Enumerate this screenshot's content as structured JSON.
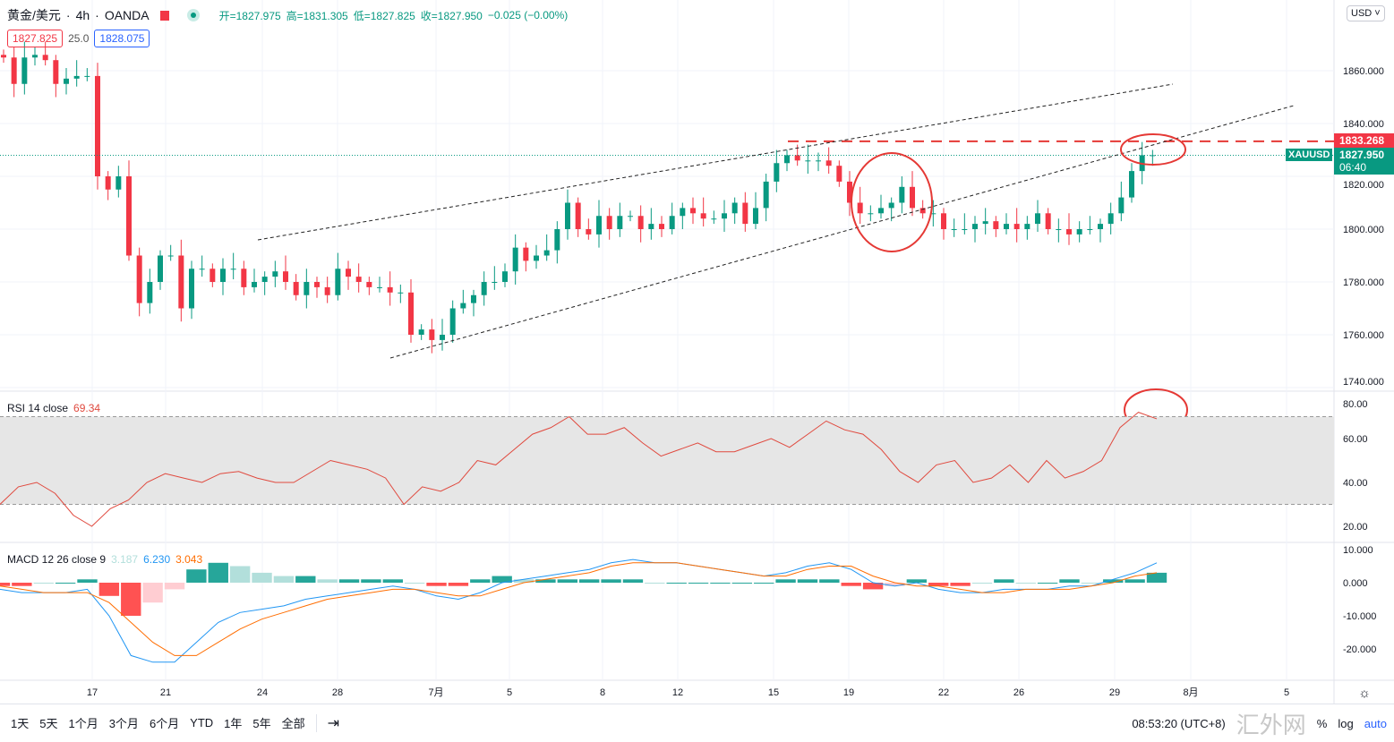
{
  "header": {
    "symbol": "黄金/美元",
    "interval": "4h",
    "broker": "OANDA",
    "ohlc": {
      "open": "开=1827.975",
      "high": "高=1831.305",
      "low": "低=1827.825",
      "close": "收=1827.950",
      "change": "−0.025 (−0.00%)"
    },
    "bid": "1827.825",
    "spread": "25.0",
    "ask": "1828.075"
  },
  "currency": "USD",
  "price_tags": {
    "line_price": "1833.268",
    "symbol": "XAUUSD",
    "last": "1827.950",
    "countdown": "06:40"
  },
  "rsi": {
    "label": "RSI 14 close",
    "value": "69.34"
  },
  "macd": {
    "label": "MACD 12 26 close 9",
    "hist": "3.187",
    "macd": "6.230",
    "signal": "3.043"
  },
  "bottom": {
    "ranges": [
      "1天",
      "5天",
      "1个月",
      "3个月",
      "6个月",
      "YTD",
      "1年",
      "5年",
      "全部"
    ],
    "compare_icon": "⇥",
    "time": "08:53:20 (UTC+8)",
    "percent": "%",
    "log": "log",
    "auto": "auto"
  },
  "watermark": "汇外网",
  "colors": {
    "up": "#089981",
    "down": "#f23645",
    "rsi": "#e0493e",
    "macd": "#2196f3",
    "signal": "#ff6d00",
    "annotation": "#e53935"
  },
  "chart_data": {
    "type": "candlestick",
    "title": "XAUUSD 4h",
    "price_axis": {
      "ticks": [
        "1860.000",
        "1840.000",
        "1820.000",
        "1800.000",
        "1780.000",
        "1760.000",
        "1740.000"
      ],
      "range": [
        1735,
        1880
      ]
    },
    "time_axis": {
      "ticks": [
        "17",
        "21",
        "24",
        "28",
        "7月",
        "5",
        "8",
        "12",
        "15",
        "19",
        "22",
        "26",
        "29",
        "8月",
        "5"
      ]
    },
    "closes": [
      1865,
      1855,
      1865,
      1866,
      1864,
      1855,
      1857,
      1858,
      1858,
      1820,
      1815,
      1820,
      1790,
      1772,
      1780,
      1790,
      1790,
      1770,
      1785,
      1785,
      1780,
      1785,
      1785,
      1778,
      1780,
      1782,
      1784,
      1780,
      1775,
      1780,
      1778,
      1775,
      1785,
      1782,
      1780,
      1778,
      1778,
      1776,
      1776,
      1760,
      1762,
      1758,
      1760,
      1770,
      1772,
      1775,
      1780,
      1780,
      1784,
      1793,
      1788,
      1790,
      1792,
      1800,
      1810,
      1800,
      1798,
      1805,
      1800,
      1805,
      1805,
      1800,
      1802,
      1800,
      1805,
      1808,
      1806,
      1804,
      1804,
      1806,
      1810,
      1802,
      1808,
      1818,
      1825,
      1828,
      1826,
      1826,
      1826,
      1824,
      1818,
      1810,
      1806,
      1806,
      1808,
      1810,
      1816,
      1808,
      1806,
      1806,
      1800,
      1800,
      1800,
      1802,
      1803,
      1800,
      1802,
      1800,
      1802,
      1806,
      1800,
      1800,
      1798,
      1800,
      1800,
      1802,
      1806,
      1812,
      1822,
      1828,
      1828
    ],
    "rsi": {
      "range": [
        15,
        82
      ],
      "levels": [
        70,
        30
      ],
      "ticks": [
        "80.00",
        "60.00",
        "40.00",
        "20.00"
      ],
      "values": [
        30,
        38,
        40,
        35,
        25,
        20,
        28,
        32,
        40,
        44,
        42,
        40,
        44,
        45,
        42,
        40,
        40,
        45,
        50,
        48,
        46,
        42,
        30,
        38,
        36,
        40,
        50,
        48,
        55,
        62,
        65,
        70,
        62,
        62,
        65,
        58,
        52,
        55,
        58,
        54,
        54,
        57,
        60,
        56,
        62,
        68,
        64,
        62,
        55,
        45,
        40,
        48,
        50,
        40,
        42,
        48,
        40,
        50,
        42,
        45,
        50,
        65,
        72,
        69
      ]
    },
    "macd": {
      "range": [
        -27,
        13
      ],
      "ticks": [
        "10.000",
        "0.000",
        "-10.000",
        "-20.000"
      ],
      "macd": [
        -2,
        -3,
        -3,
        -3,
        -2,
        -10,
        -22,
        -24,
        -24,
        -18,
        -12,
        -9,
        -8,
        -7,
        -5,
        -4,
        -3,
        -2,
        -1,
        -2,
        -4,
        -5,
        -3,
        0,
        1,
        2,
        3,
        4,
        6,
        7,
        6,
        6,
        5,
        4,
        3,
        2,
        3,
        5,
        6,
        4,
        0,
        -1,
        0,
        -2,
        -3,
        -3,
        -2,
        -2,
        -2,
        -1,
        -1,
        1,
        3,
        6
      ],
      "signal": [
        -1,
        -2,
        -3,
        -3,
        -3,
        -6,
        -12,
        -18,
        -22,
        -22,
        -18,
        -14,
        -11,
        -9,
        -7,
        -5,
        -4,
        -3,
        -2,
        -2,
        -3,
        -4,
        -4,
        -2,
        0,
        1,
        2,
        3,
        5,
        6,
        6,
        6,
        5,
        4,
        3,
        2,
        2,
        4,
        5,
        5,
        2,
        0,
        -1,
        -1,
        -2,
        -3,
        -3,
        -2,
        -2,
        -2,
        -1,
        0,
        2,
        3
      ]
    },
    "annotations": {
      "horizontal_line": 1833.268,
      "last_price": 1827.95
    }
  }
}
